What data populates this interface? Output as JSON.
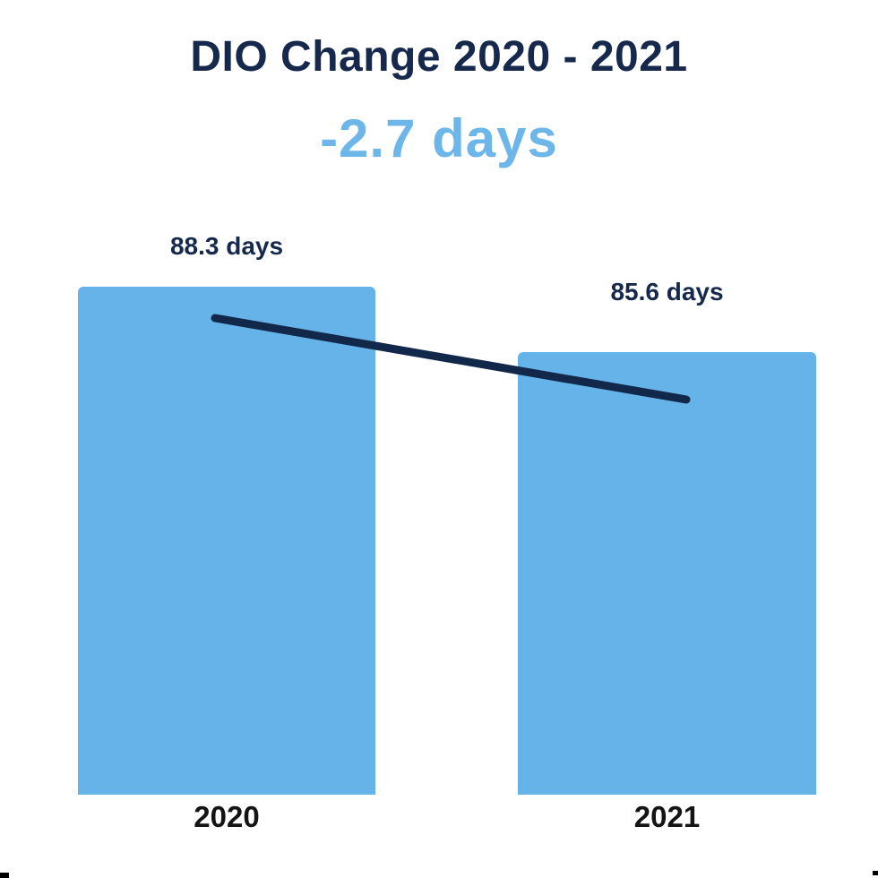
{
  "chart_data": {
    "type": "bar",
    "title": "DIO Change 2020 - 2021",
    "change_label": "-2.7 days",
    "change_value": -2.7,
    "unit": "days",
    "categories": [
      "2020",
      "2021"
    ],
    "values": [
      88.3,
      85.6
    ],
    "bar_labels": [
      "88.3 days",
      "85.6 days"
    ],
    "ylim": [
      67.3,
      88.3
    ],
    "grid": false,
    "legend": false,
    "annotations": [
      "downward trend line drawn from top of 2020 bar to top of 2021 bar"
    ],
    "colors": {
      "bar_fill": "#66b3e9",
      "title_text": "#16294d",
      "change_text": "#6db6ea",
      "value_label_text": "#16294d",
      "axis_label_text": "#141414",
      "trend_line": "#12284a",
      "background": "#ffffff"
    }
  }
}
